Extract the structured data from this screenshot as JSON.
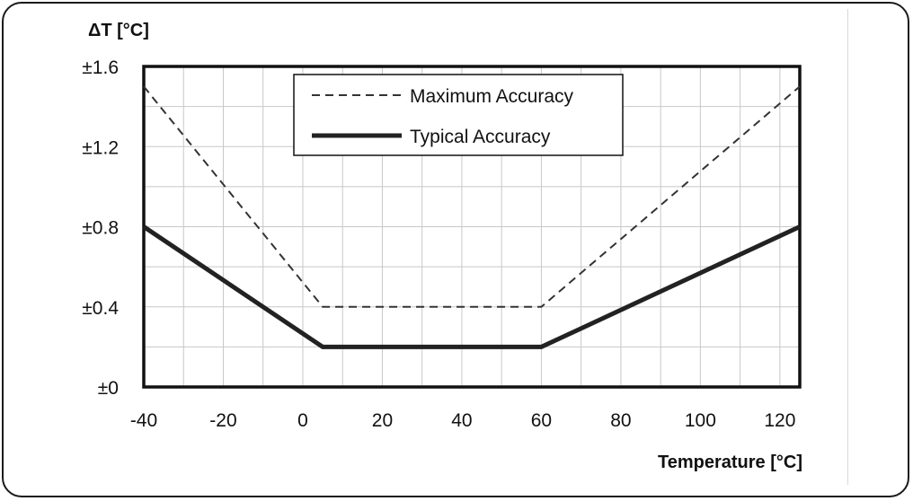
{
  "chart_data": {
    "type": "line",
    "ylabel": "ΔT [°C]",
    "xlabel": "Temperature [°C]",
    "xlim": [
      -40,
      125
    ],
    "ylim": [
      0,
      1.6
    ],
    "x_ticks": [
      -40,
      -20,
      0,
      20,
      40,
      60,
      80,
      100,
      120
    ],
    "x_tick_labels": [
      "-40",
      "-20",
      "0",
      "20",
      "40",
      "60",
      "80",
      "100",
      "120"
    ],
    "y_ticks": [
      0,
      0.4,
      0.8,
      1.2,
      1.6
    ],
    "y_tick_labels": [
      "±0",
      "±0.4",
      "±0.8",
      "±1.2",
      "±1.6"
    ],
    "x_minor_step": 10,
    "y_minor_step": 0.2,
    "grid": true,
    "legend_position": "top-center",
    "series": [
      {
        "name": "Maximum Accuracy",
        "style": "dashed",
        "color": "#333333",
        "x": [
          -40,
          5,
          60,
          125
        ],
        "y": [
          1.5,
          0.4,
          0.4,
          1.5
        ]
      },
      {
        "name": "Typical Accuracy",
        "style": "solid-thick",
        "color": "#222222",
        "x": [
          -40,
          5,
          60,
          125
        ],
        "y": [
          0.8,
          0.2,
          0.2,
          0.8
        ]
      }
    ]
  }
}
